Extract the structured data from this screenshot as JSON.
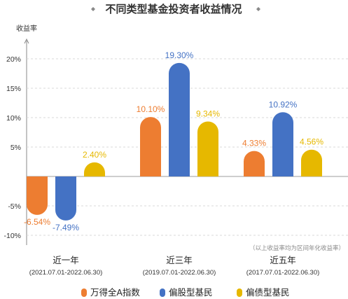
{
  "chart_data": {
    "type": "bar",
    "title": "不同类型基金投资者收益情况",
    "ylabel": "收益率",
    "ylim": [
      -10,
      20
    ],
    "yticks": [
      20,
      15,
      10,
      5,
      0,
      -5,
      -10
    ],
    "ytick_labels": [
      "20%",
      "15%",
      "10%",
      "5%",
      "",
      "-5%",
      "-10%"
    ],
    "categories": [
      "近一年",
      "近三年",
      "近五年"
    ],
    "category_periods": [
      "(2021.07.01-2022.06.30)",
      "(2019.07.01-2022.06.30)",
      "(2017.07.01-2022.06.30)"
    ],
    "series": [
      {
        "name": "万得全A指数",
        "color": "#ED7D31",
        "values": [
          -6.54,
          10.1,
          4.33
        ],
        "labels": [
          "-6.54%",
          "10.10%",
          "4.33%"
        ]
      },
      {
        "name": "偏股型基民",
        "color": "#4472C4",
        "values": [
          -7.49,
          19.3,
          10.92
        ],
        "labels": [
          "-7.49%",
          "19.30%",
          "10.92%"
        ]
      },
      {
        "name": "偏债型基民",
        "color": "#E6B800",
        "values": [
          2.4,
          9.34,
          4.56
        ],
        "labels": [
          "2.40%",
          "9.34%",
          "4.56%"
        ]
      }
    ],
    "note": "（以上收益率均为区间年化收益率）",
    "grid": "horizontal dashed",
    "legend_position": "bottom"
  }
}
